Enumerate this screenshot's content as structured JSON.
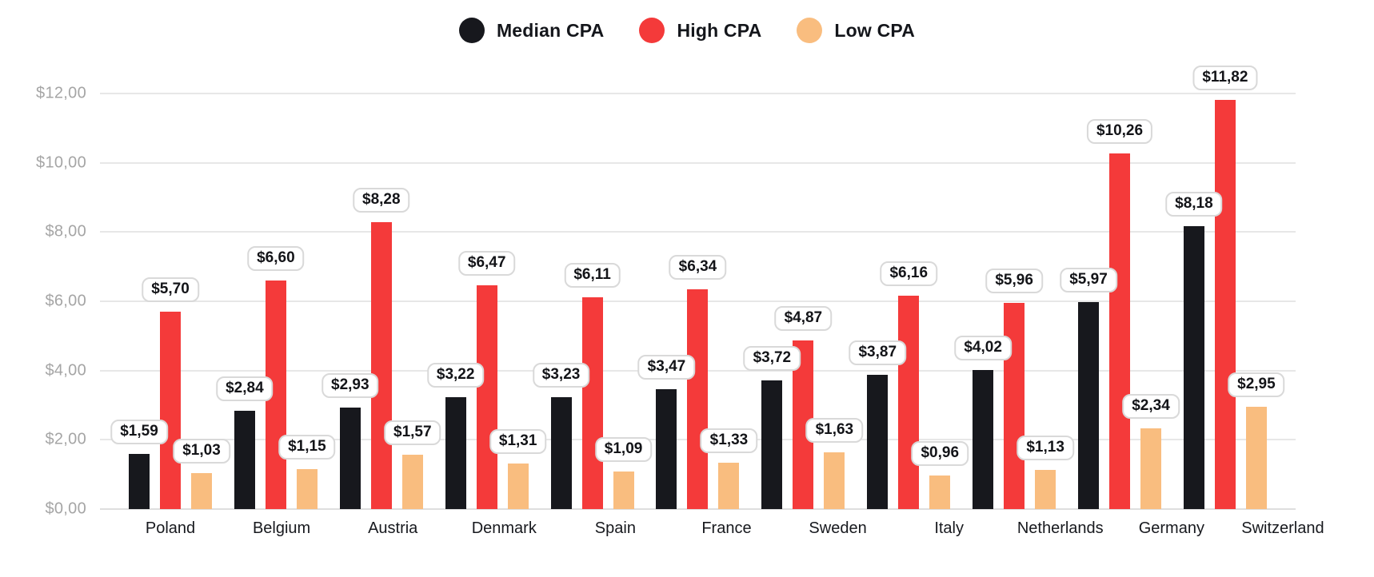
{
  "chart_data": {
    "type": "bar",
    "title": "",
    "categories": [
      "Poland",
      "Belgium",
      "Austria",
      "Denmark",
      "Spain",
      "France",
      "Sweden",
      "Italy",
      "Netherlands",
      "Germany",
      "Switzerland"
    ],
    "series": [
      {
        "name": "Median CPA",
        "color": "#17181d",
        "values": [
          1.59,
          2.84,
          2.93,
          3.22,
          3.23,
          3.47,
          3.72,
          3.87,
          4.02,
          5.97,
          8.18
        ],
        "labels": [
          "$1,59",
          "$2,84",
          "$2,93",
          "$3,22",
          "$3,23",
          "$3,47",
          "$3,72",
          "$3,87",
          "$4,02",
          "$5,97",
          "$8,18"
        ]
      },
      {
        "name": "High CPA",
        "color": "#f43a3a",
        "values": [
          5.7,
          6.6,
          8.28,
          6.47,
          6.11,
          6.34,
          4.87,
          6.16,
          5.96,
          10.26,
          11.82
        ],
        "labels": [
          "$5,70",
          "$6,60",
          "$8,28",
          "$6,47",
          "$6,11",
          "$6,34",
          "$4,87",
          "$6,16",
          "$5,96",
          "$10,26",
          "$11,82"
        ]
      },
      {
        "name": "Low CPA",
        "color": "#f9bd7f",
        "values": [
          1.03,
          1.15,
          1.57,
          1.31,
          1.09,
          1.33,
          1.63,
          0.96,
          1.13,
          2.34,
          2.95
        ],
        "labels": [
          "$1,03",
          "$1,15",
          "$1,57",
          "$1,31",
          "$1,09",
          "$1,33",
          "$1,63",
          "$0,96",
          "$1,13",
          "$2,34",
          "$2,95"
        ]
      }
    ],
    "ylim": [
      0,
      12
    ],
    "y_ticks": [
      {
        "value": 12,
        "label": "$12,00"
      },
      {
        "value": 10,
        "label": "$10,00"
      },
      {
        "value": 8,
        "label": "$8,00"
      },
      {
        "value": 6,
        "label": "$6,00"
      },
      {
        "value": 4,
        "label": "$4,00"
      },
      {
        "value": 2,
        "label": "$2,00"
      },
      {
        "value": 0,
        "label": "$0,00"
      }
    ],
    "grid": "horizontal",
    "legend_position": "top"
  }
}
